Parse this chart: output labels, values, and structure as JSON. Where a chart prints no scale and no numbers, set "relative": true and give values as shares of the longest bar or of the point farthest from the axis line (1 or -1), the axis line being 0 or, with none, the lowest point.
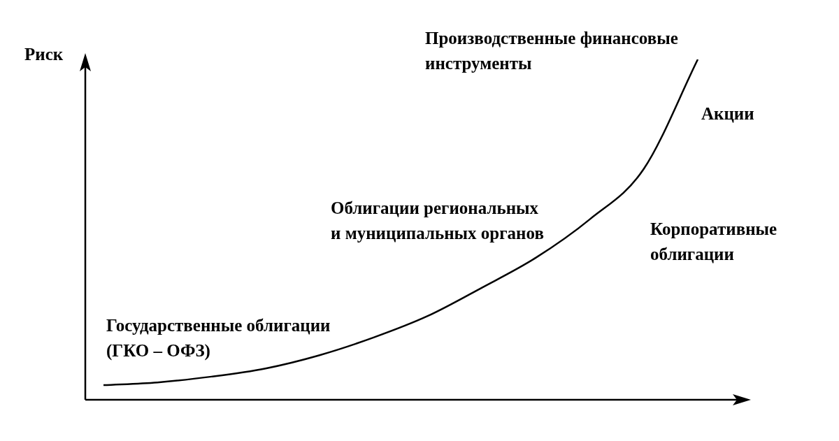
{
  "chart_data": {
    "type": "line",
    "relative": true,
    "ylabel": "Риск",
    "color": "#000000",
    "categories": [
      null,
      null,
      null,
      null,
      null,
      null,
      null,
      null,
      null,
      null,
      null,
      null
    ],
    "values": [
      0.043,
      0.051,
      0.068,
      0.092,
      0.131,
      0.183,
      0.246,
      0.329,
      0.417,
      0.53,
      0.678,
      1
    ],
    "annotations": [
      "Производственные финансовые\nинструменты",
      "Акции",
      "Облигации региональных\nи муниципальных органов",
      "Корпоративные\nоблигации",
      "Государственные облигации\n(ГКО – ОФЗ)"
    ]
  }
}
